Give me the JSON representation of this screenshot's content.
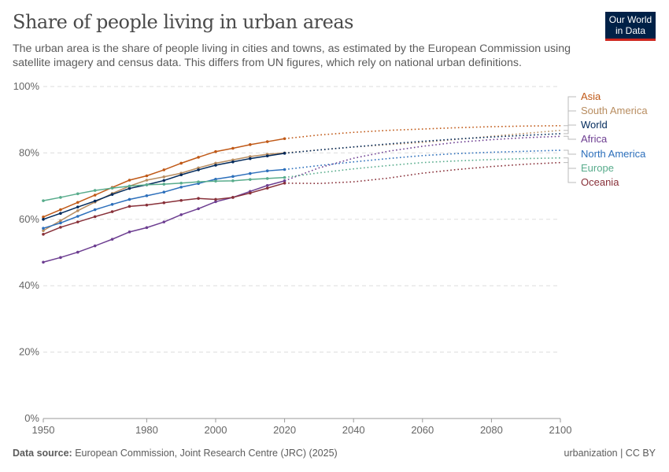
{
  "header": {
    "title": "Share of people living in urban areas",
    "subtitle": "The urban area is the share of people living in cities and towns, as estimated by the European Commission using satellite imagery and census data. This differs from UN figures, which rely on national urban definitions.",
    "logo": "Our World in Data"
  },
  "footer": {
    "source_label": "Data source:",
    "source": "European Commission, Joint Research Centre (JRC) (2025)",
    "license": "urbanization | CC BY"
  },
  "chart_data": {
    "type": "line",
    "title": "Share of people living in urban areas",
    "xlim": [
      1950,
      2100
    ],
    "ylim": [
      0,
      100
    ],
    "x_ticks": [
      1950,
      1980,
      2000,
      2020,
      2040,
      2060,
      2080,
      2100
    ],
    "y_ticks": [
      "0%",
      "20%",
      "40%",
      "60%",
      "80%",
      "100%"
    ],
    "y_tick_values": [
      0,
      20,
      40,
      60,
      80,
      100
    ],
    "grid": "horizontal dashed",
    "legend": "right, line-end labels",
    "x_observed": [
      1950,
      1955,
      1960,
      1965,
      1970,
      1975,
      1980,
      1985,
      1990,
      1995,
      2000,
      2005,
      2010,
      2015,
      2020
    ],
    "x_projected": [
      2020,
      2030,
      2040,
      2050,
      2060,
      2070,
      2080,
      2090,
      2100
    ],
    "series": [
      {
        "name": "Asia",
        "color": "#c05917",
        "values": [
          60.7,
          62.9,
          65.1,
          67.3,
          69.6,
          71.8,
          73.1,
          74.9,
          76.9,
          78.7,
          80.4,
          81.4,
          82.5,
          83.4,
          84.3
        ],
        "projected": [
          84.3,
          85.4,
          86.2,
          86.8,
          87.2,
          87.6,
          87.9,
          88.1,
          88.2
        ]
      },
      {
        "name": "South America",
        "color": "#b88d60",
        "values": [
          56.6,
          59.6,
          62.6,
          65.2,
          67.8,
          70.0,
          71.8,
          72.8,
          73.9,
          75.5,
          76.9,
          77.9,
          78.9,
          79.6,
          80.0
        ],
        "projected": [
          80.0,
          80.9,
          81.8,
          82.5,
          83.2,
          84.1,
          85.0,
          85.9,
          86.8
        ]
      },
      {
        "name": "World",
        "color": "#00295b",
        "values": [
          60.0,
          61.8,
          63.7,
          65.5,
          67.5,
          69.3,
          70.4,
          71.7,
          73.4,
          74.9,
          76.3,
          77.3,
          78.3,
          79.1,
          79.9
        ],
        "projected": [
          79.9,
          80.9,
          81.8,
          82.7,
          83.5,
          84.2,
          84.8,
          85.3,
          85.8
        ]
      },
      {
        "name": "Africa",
        "color": "#6d3e91",
        "values": [
          47.1,
          48.5,
          50.1,
          52.0,
          54.0,
          56.2,
          57.5,
          59.2,
          61.4,
          63.2,
          65.3,
          66.6,
          68.4,
          70.2,
          71.6
        ],
        "projected": [
          71.6,
          75.5,
          78.4,
          80.5,
          82.0,
          83.2,
          84.0,
          84.6,
          85.0
        ]
      },
      {
        "name": "North America",
        "color": "#2c6fbb",
        "values": [
          57.3,
          58.9,
          60.9,
          62.9,
          64.5,
          66.0,
          67.1,
          68.2,
          69.7,
          70.8,
          72.1,
          72.9,
          73.8,
          74.6,
          75.0
        ],
        "projected": [
          75.0,
          76.2,
          77.3,
          78.3,
          79.2,
          79.8,
          80.2,
          80.5,
          80.8
        ]
      },
      {
        "name": "Europe",
        "color": "#58ac8c",
        "values": [
          65.6,
          66.6,
          67.7,
          68.7,
          69.4,
          70.0,
          70.4,
          70.6,
          70.9,
          71.3,
          71.5,
          71.6,
          72.0,
          72.3,
          72.6
        ],
        "projected": [
          72.6,
          74.0,
          75.2,
          76.2,
          77.1,
          77.6,
          78.0,
          78.3,
          78.5
        ]
      },
      {
        "name": "Oceania",
        "color": "#883039",
        "values": [
          55.5,
          57.6,
          59.2,
          60.8,
          62.3,
          63.9,
          64.3,
          65.0,
          65.7,
          66.3,
          66.0,
          66.6,
          67.9,
          69.4,
          70.9
        ],
        "projected": [
          70.9,
          70.8,
          71.3,
          72.4,
          73.9,
          75.0,
          75.9,
          76.6,
          77.1
        ]
      }
    ]
  }
}
